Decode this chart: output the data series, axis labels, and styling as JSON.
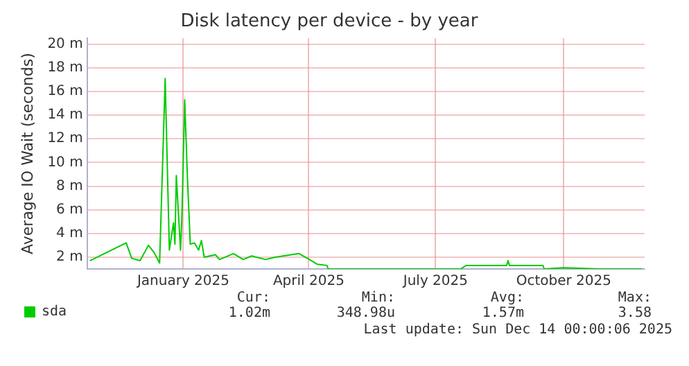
{
  "chart_data": {
    "type": "line",
    "title": "Disk latency per device - by year",
    "ylabel": "Average IO Wait (seconds)",
    "x": [
      "2024-10-26",
      "2024-11-21",
      "2024-11-25",
      "2024-12-01",
      "2024-12-07",
      "2024-12-11",
      "2024-12-15",
      "2024-12-19",
      "2024-12-22",
      "2024-12-25",
      "2024-12-26",
      "2024-12-27",
      "2024-12-30",
      "2024-12-31",
      "2025-01-02",
      "2025-01-04",
      "2025-01-06",
      "2025-01-09",
      "2025-01-12",
      "2025-01-14",
      "2025-01-16",
      "2025-01-24",
      "2025-01-27",
      "2025-02-06",
      "2025-02-13",
      "2025-02-19",
      "2025-03-01",
      "2025-03-08",
      "2025-03-25",
      "2025-03-31",
      "2025-04-07",
      "2025-04-14",
      "2025-04-15",
      "2025-07-19",
      "2025-07-23",
      "2025-08-21",
      "2025-08-22",
      "2025-08-23",
      "2025-09-16",
      "2025-09-17",
      "2025-10-01",
      "2025-10-27",
      "2025-11-26"
    ],
    "series": [
      {
        "name": "sda",
        "color": "#00cc00",
        "values": [
          1.7,
          3.2,
          1.9,
          1.7,
          3.0,
          2.4,
          1.5,
          17.1,
          2.6,
          4.9,
          3.1,
          8.9,
          2.6,
          5.3,
          15.3,
          8.6,
          3.1,
          3.2,
          2.6,
          3.4,
          2.0,
          2.2,
          1.8,
          2.3,
          1.8,
          2.1,
          1.8,
          2.0,
          2.3,
          1.9,
          1.4,
          1.3,
          1.0,
          1.0,
          1.3,
          1.3,
          1.7,
          1.3,
          1.3,
          1.0,
          1.1,
          1.0,
          1.0
        ]
      }
    ],
    "xlim": [
      "2024-10-24",
      "2025-11-28"
    ],
    "xticks": [
      {
        "value": "2025-01-01",
        "label": "January 2025"
      },
      {
        "value": "2025-04-01",
        "label": "April 2025"
      },
      {
        "value": "2025-07-01",
        "label": "July 2025"
      },
      {
        "value": "2025-10-01",
        "label": "October 2025"
      }
    ],
    "ylim": [
      1,
      20.5
    ],
    "yticks": [
      {
        "value": 2,
        "label": "2 m"
      },
      {
        "value": 4,
        "label": "4 m"
      },
      {
        "value": 6,
        "label": "6 m"
      },
      {
        "value": 8,
        "label": "8 m"
      },
      {
        "value": 10,
        "label": "10 m"
      },
      {
        "value": 12,
        "label": "12 m"
      },
      {
        "value": 14,
        "label": "14 m"
      },
      {
        "value": 16,
        "label": "16 m"
      },
      {
        "value": 18,
        "label": "18 m"
      },
      {
        "value": 20,
        "label": "20 m"
      }
    ],
    "grid": true,
    "legend": "bottom",
    "marker": "none",
    "line_style": "solid",
    "annotations": [
      "Cur:",
      "Min:",
      "Avg:",
      "Max:",
      "1.02m",
      "348.98u",
      "1.57m",
      "3.58",
      "Last update: Sun Dec 14 00:00:06 2025"
    ]
  }
}
